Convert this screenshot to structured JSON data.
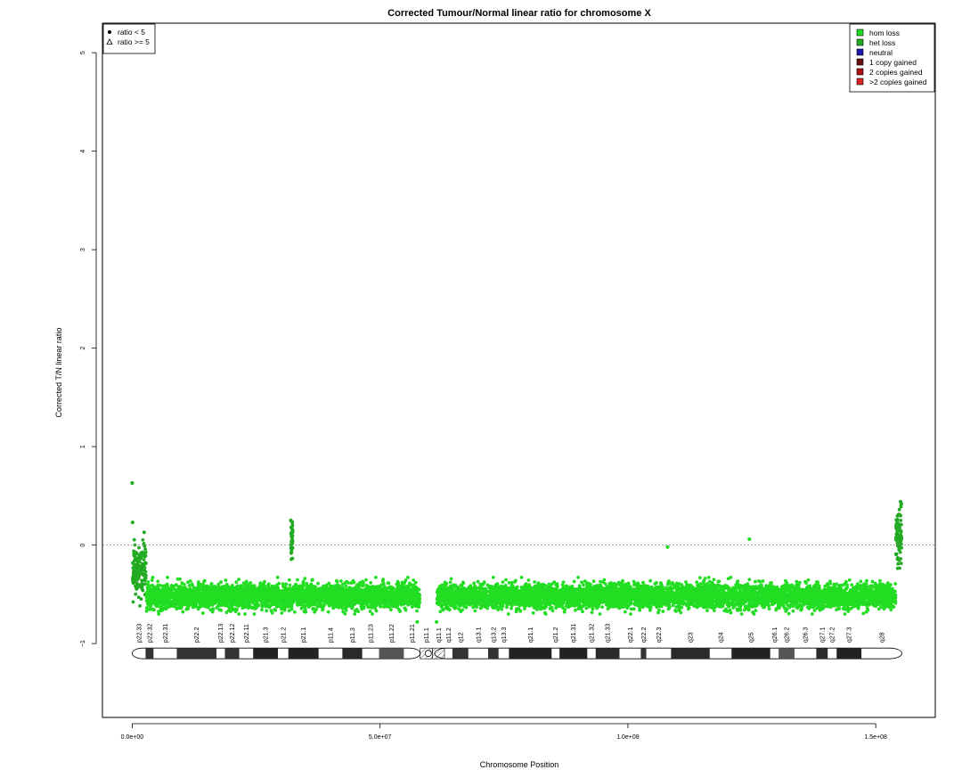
{
  "chart_data": {
    "type": "scatter",
    "title": "Corrected Tumour/Normal linear ratio for chromosome  X",
    "xlabel": "Chromosome Position",
    "ylabel": "Corrected T/N linear ratio",
    "xlim": [
      -6000000,
      162000000
    ],
    "ylim": [
      -1.75,
      5.3
    ],
    "x_ticks": [
      0,
      50000000,
      100000000,
      150000000
    ],
    "x_tick_labels": [
      "0.0e+00",
      "5.0e+07",
      "1.0e+08",
      "1.5e+08"
    ],
    "y_ticks": [
      -1,
      0,
      1,
      2,
      3,
      4,
      5
    ],
    "y_tick_labels": [
      "−1",
      "0",
      "1",
      "2",
      "3",
      "4",
      "5"
    ],
    "reference_line": 0,
    "chromosome_length": 155270560,
    "centromere": [
      58100000,
      61000000
    ],
    "shape_legend": {
      "position": "top-left",
      "entries": [
        {
          "symbol": "circle",
          "label": "ratio < 5"
        },
        {
          "symbol": "triangle",
          "label": "ratio >= 5"
        }
      ]
    },
    "state_legend": {
      "position": "top-right",
      "entries": [
        {
          "label": "hom loss",
          "color": "#22dd22"
        },
        {
          "label": "het loss",
          "color": "#22aa22"
        },
        {
          "label": "neutral",
          "color": "#1a1aaa"
        },
        {
          "label": "1 copy gained",
          "color": "#661111"
        },
        {
          "label": "2 copies gained",
          "color": "#aa1111"
        },
        {
          "label": ">2 copies gained",
          "color": "#dd2222"
        }
      ]
    },
    "series": [
      {
        "name": "het loss",
        "color": "#22aa22",
        "segments": [
          {
            "x_start": 100000,
            "x_end": 2800000,
            "mean": -0.25,
            "spread": 0.13
          },
          {
            "x_start": 32000000,
            "x_end": 32400000,
            "mean": 0.05,
            "spread": 0.1
          },
          {
            "x_start": 154000000,
            "x_end": 155200000,
            "mean": 0.1,
            "spread": 0.15
          }
        ],
        "points": [
          {
            "x": 0,
            "y": 0.63
          },
          {
            "x": 100000,
            "y": 0.23
          },
          {
            "x": 2400000,
            "y": 0.13
          },
          {
            "x": 32000000,
            "y": 0.25
          },
          {
            "x": 155000000,
            "y": 0.44
          },
          {
            "x": 155000000,
            "y": 0.3
          }
        ]
      },
      {
        "name": "hom loss",
        "color": "#22dd22",
        "segments": [
          {
            "x_start": 2900000,
            "x_end": 58000000,
            "mean": -0.52,
            "spread": 0.06
          },
          {
            "x_start": 61500000,
            "x_end": 154000000,
            "mean": -0.52,
            "spread": 0.06
          }
        ],
        "points": [
          {
            "x": 57500000,
            "y": -0.78
          },
          {
            "x": 61400000,
            "y": -0.78
          },
          {
            "x": 108000000,
            "y": -0.02
          },
          {
            "x": 124500000,
            "y": 0.06
          }
        ]
      }
    ],
    "ideogram": {
      "bands": [
        {
          "name": "p22.33",
          "start": 0,
          "end": 2700000,
          "stain": "gneg"
        },
        {
          "name": "p22.32",
          "start": 2700000,
          "end": 4300000,
          "stain": "gpos50"
        },
        {
          "name": "p22.31",
          "start": 4300000,
          "end": 9000000,
          "stain": "gneg"
        },
        {
          "name": "p22.2",
          "start": 9000000,
          "end": 17000000,
          "stain": "gpos50"
        },
        {
          "name": "p22.13",
          "start": 17000000,
          "end": 18700000,
          "stain": "gneg"
        },
        {
          "name": "p22.12",
          "start": 18700000,
          "end": 21600000,
          "stain": "gpos50"
        },
        {
          "name": "p22.11",
          "start": 21600000,
          "end": 24400000,
          "stain": "gneg"
        },
        {
          "name": "p21.3",
          "start": 24400000,
          "end": 29400000,
          "stain": "gpos100"
        },
        {
          "name": "p21.2",
          "start": 29400000,
          "end": 31500000,
          "stain": "gneg"
        },
        {
          "name": "p21.1",
          "start": 31500000,
          "end": 37600000,
          "stain": "gpos100"
        },
        {
          "name": "p11.4",
          "start": 37600000,
          "end": 42400000,
          "stain": "gneg"
        },
        {
          "name": "p11.3",
          "start": 42400000,
          "end": 46400000,
          "stain": "gpos75"
        },
        {
          "name": "p11.23",
          "start": 46400000,
          "end": 49800000,
          "stain": "gneg"
        },
        {
          "name": "p11.22",
          "start": 49800000,
          "end": 54800000,
          "stain": "gpos25"
        },
        {
          "name": "p11.21",
          "start": 54800000,
          "end": 58100000,
          "stain": "gneg"
        },
        {
          "name": "p11.1",
          "start": 58100000,
          "end": 60600000,
          "stain": "acen"
        },
        {
          "name": "q11.1",
          "start": 60600000,
          "end": 63000000,
          "stain": "acen"
        },
        {
          "name": "q11.2",
          "start": 63000000,
          "end": 64600000,
          "stain": "gneg"
        },
        {
          "name": "q12",
          "start": 64600000,
          "end": 67800000,
          "stain": "gpos50"
        },
        {
          "name": "q13.1",
          "start": 67800000,
          "end": 71800000,
          "stain": "gneg"
        },
        {
          "name": "q13.2",
          "start": 71800000,
          "end": 73900000,
          "stain": "gpos50"
        },
        {
          "name": "q13.3",
          "start": 73900000,
          "end": 76000000,
          "stain": "gneg"
        },
        {
          "name": "q21.1",
          "start": 76000000,
          "end": 84600000,
          "stain": "gpos100"
        },
        {
          "name": "q21.2",
          "start": 84600000,
          "end": 86200000,
          "stain": "gneg"
        },
        {
          "name": "q21.31",
          "start": 86200000,
          "end": 91800000,
          "stain": "gpos100"
        },
        {
          "name": "q21.32",
          "start": 91800000,
          "end": 93500000,
          "stain": "gneg"
        },
        {
          "name": "q21.33",
          "start": 93500000,
          "end": 98300000,
          "stain": "gpos75"
        },
        {
          "name": "q22.1",
          "start": 98300000,
          "end": 102600000,
          "stain": "gneg"
        },
        {
          "name": "q22.2",
          "start": 102600000,
          "end": 103700000,
          "stain": "gpos50"
        },
        {
          "name": "q22.3",
          "start": 103700000,
          "end": 108700000,
          "stain": "gneg"
        },
        {
          "name": "q23",
          "start": 108700000,
          "end": 116500000,
          "stain": "gpos75"
        },
        {
          "name": "q24",
          "start": 116500000,
          "end": 120900000,
          "stain": "gneg"
        },
        {
          "name": "q25",
          "start": 120900000,
          "end": 128700000,
          "stain": "gpos100"
        },
        {
          "name": "q26.1",
          "start": 128700000,
          "end": 130400000,
          "stain": "gneg"
        },
        {
          "name": "q26.2",
          "start": 130400000,
          "end": 133600000,
          "stain": "gpos25"
        },
        {
          "name": "q26.3",
          "start": 133600000,
          "end": 138000000,
          "stain": "gneg"
        },
        {
          "name": "q27.1",
          "start": 138000000,
          "end": 140300000,
          "stain": "gpos75"
        },
        {
          "name": "q27.2",
          "start": 140300000,
          "end": 142100000,
          "stain": "gneg"
        },
        {
          "name": "q27.3",
          "start": 142100000,
          "end": 147100000,
          "stain": "gpos100"
        },
        {
          "name": "q28",
          "start": 147100000,
          "end": 155270560,
          "stain": "gneg"
        }
      ]
    }
  }
}
